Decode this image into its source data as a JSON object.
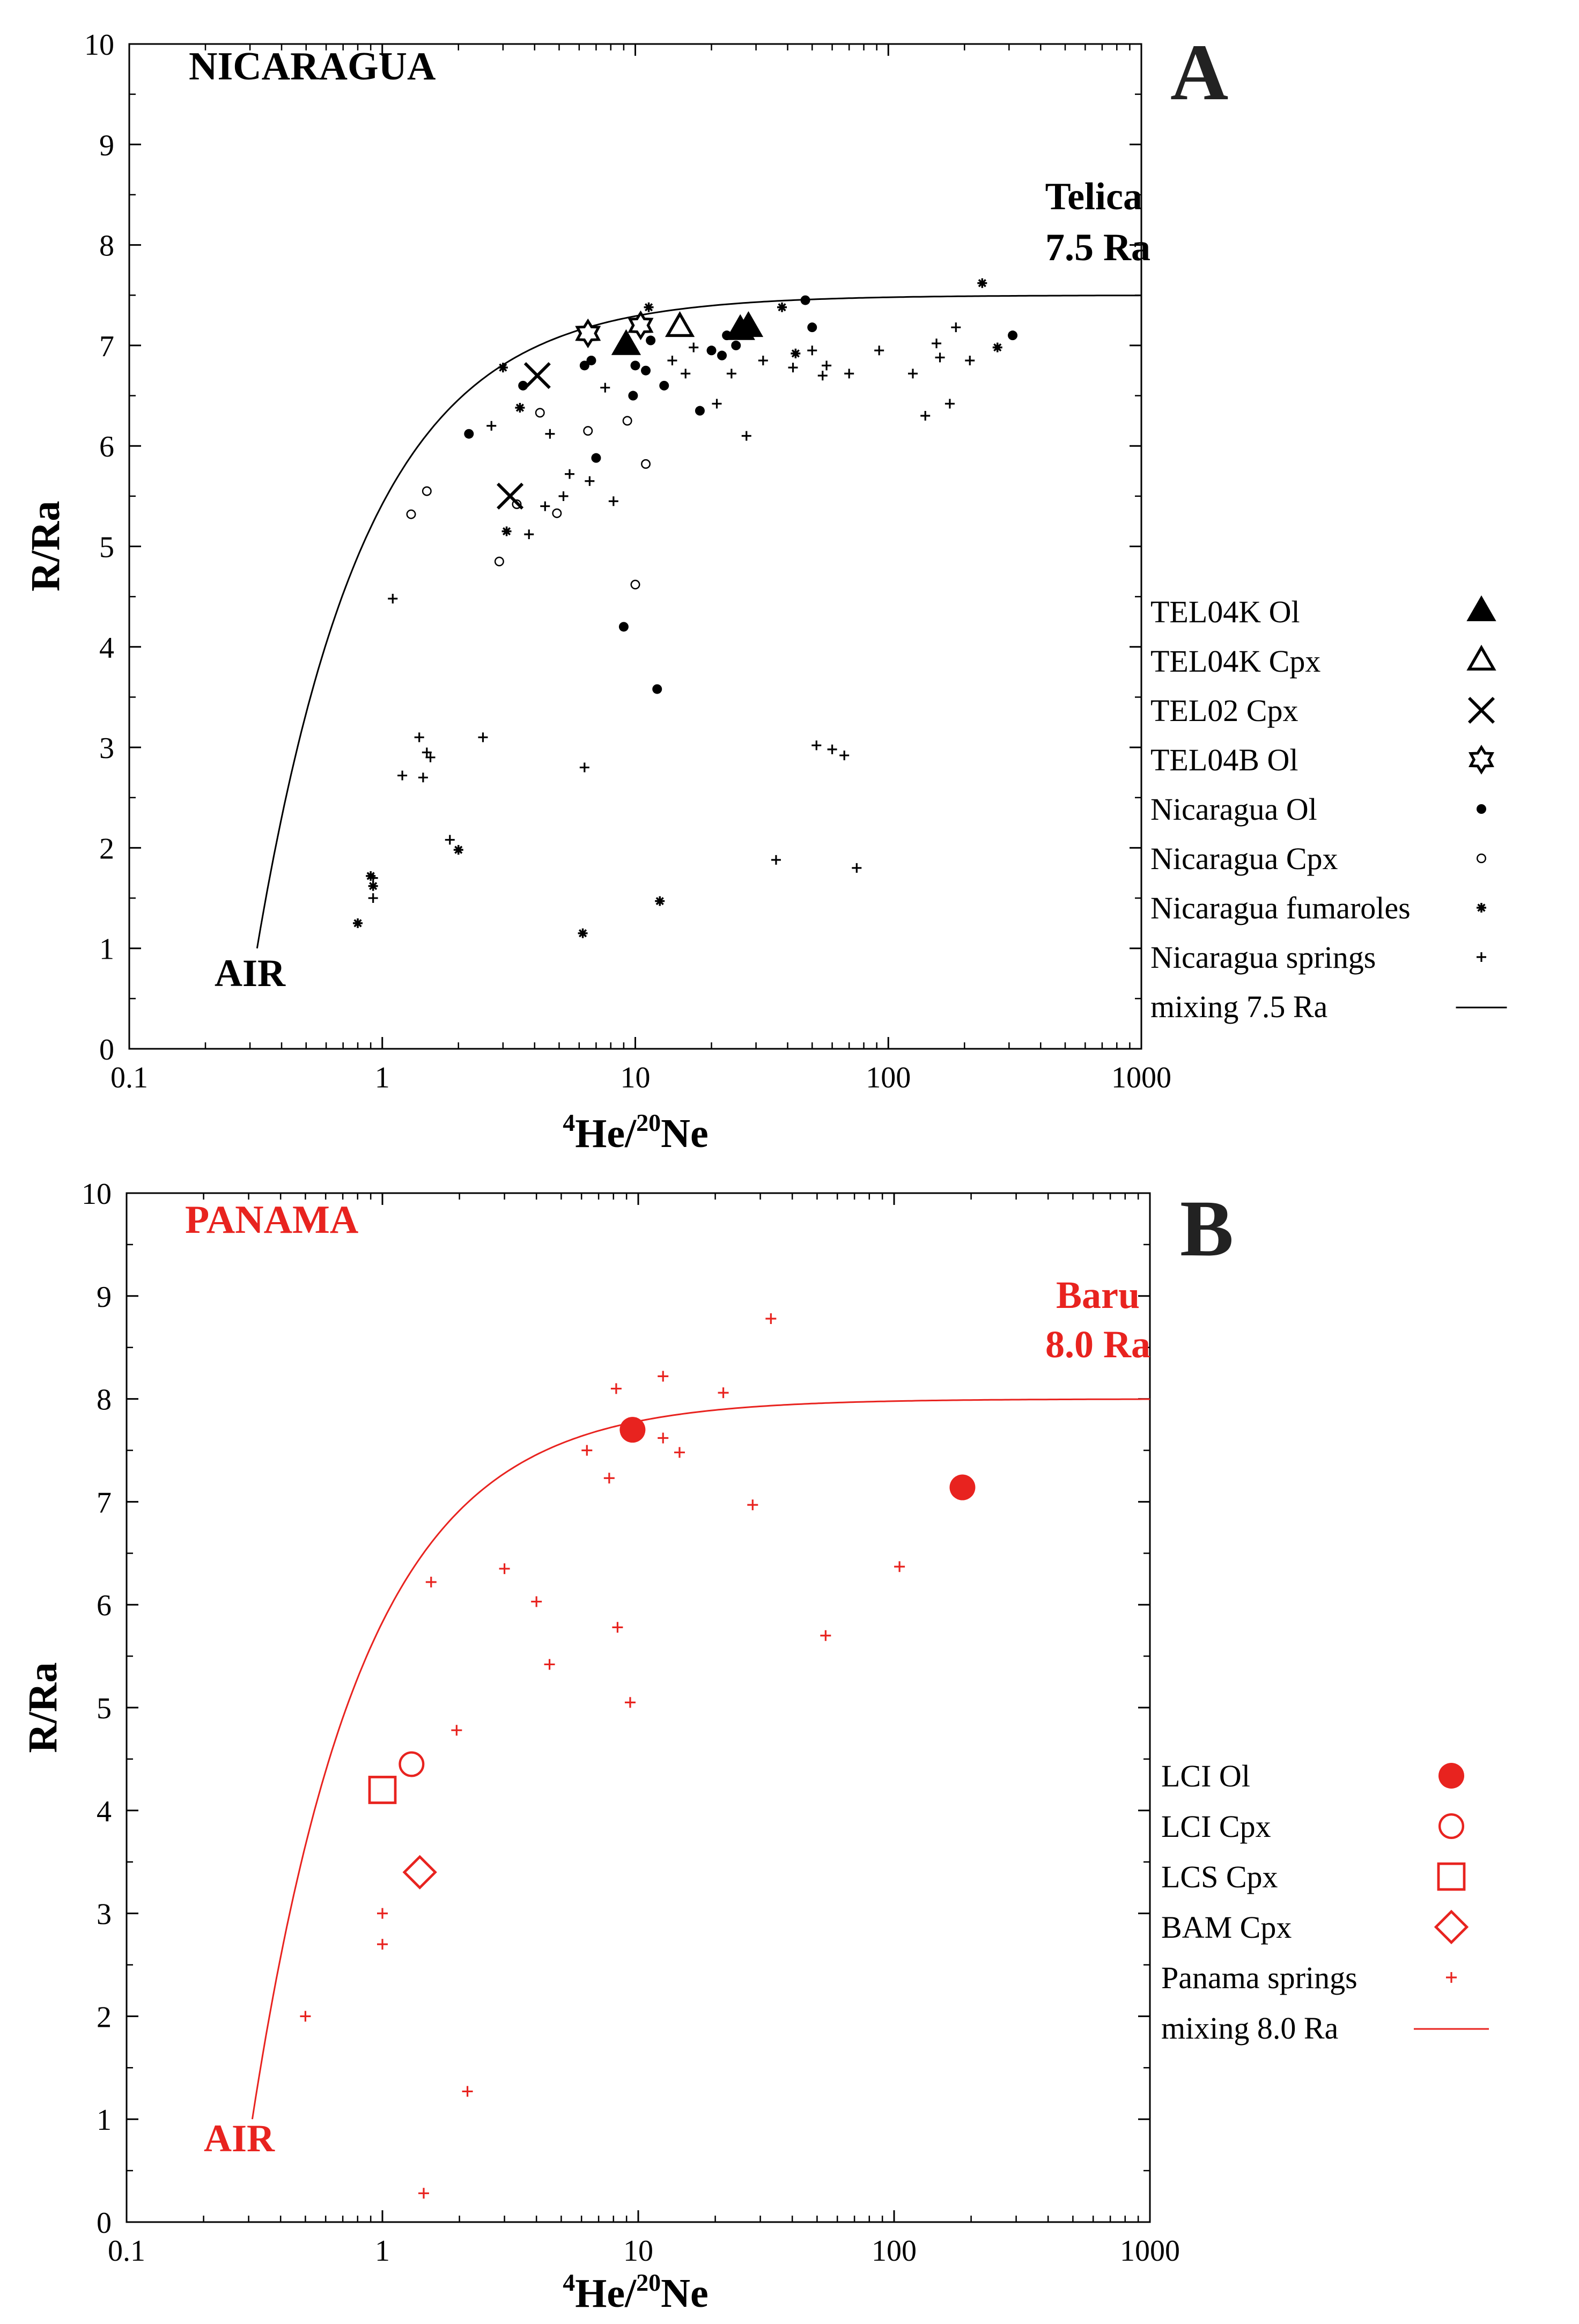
{
  "colors": {
    "nicaragua": "#000000",
    "panama": "#e8231f"
  },
  "chart_data": [
    {
      "type": "scatter",
      "panel_letter": "A",
      "region_label": "NICARAGUA",
      "endmember": {
        "name": "Telica",
        "ratio_label": "7.5 Ra",
        "ra": 7.5
      },
      "air_label": "AIR",
      "xlabel": {
        "superscript1": "4",
        "part1": "He/",
        "superscript2": "20",
        "part2": "Ne"
      },
      "ylabel": "R/Ra",
      "xscale": "log",
      "xlim": [
        0.1,
        1000
      ],
      "ylim": [
        0,
        10
      ],
      "xticks": [
        0.1,
        1,
        10,
        100,
        1000
      ],
      "xtick_labels": [
        "0.1",
        "1",
        "10",
        "100",
        "1000"
      ],
      "yticks": [
        0,
        1,
        2,
        3,
        4,
        5,
        6,
        7,
        8,
        9,
        10
      ],
      "ytick_labels": [
        "0",
        "1",
        "2",
        "3",
        "4",
        "5",
        "6",
        "7",
        "8",
        "9",
        "10"
      ],
      "color": "#000000",
      "legend_position": "right",
      "mixing_line": {
        "label": "mixing 7.5 Ra",
        "x_start": 0.32,
        "x_end": 1000,
        "r_air": 1,
        "r_end": 7.5
      },
      "series": [
        {
          "name": "TEL04K Ol",
          "marker": "triangle-filled",
          "size": "large",
          "points": [
            [
              9.2,
              7.0
            ],
            [
              26,
              7.15
            ],
            [
              28,
              7.18
            ]
          ]
        },
        {
          "name": "TEL04K Cpx",
          "marker": "triangle-open",
          "size": "large",
          "points": [
            [
              15,
              7.18
            ]
          ]
        },
        {
          "name": "TEL02 Cpx",
          "marker": "x",
          "size": "large",
          "points": [
            [
              4.1,
              6.7
            ],
            [
              3.2,
              5.5
            ]
          ]
        },
        {
          "name": "TEL04B Ol",
          "marker": "star-open",
          "size": "large",
          "points": [
            [
              6.5,
              7.12
            ],
            [
              10.5,
              7.2
            ]
          ]
        },
        {
          "name": "Nicaragua Ol",
          "marker": "dot-filled",
          "size": "small",
          "points": [
            [
              2.2,
              6.12
            ],
            [
              3.6,
              6.6
            ],
            [
              6.3,
              6.8
            ],
            [
              6.7,
              6.85
            ],
            [
              7,
              5.88
            ],
            [
              9,
              4.2
            ],
            [
              9.8,
              6.5
            ],
            [
              10,
              6.8
            ],
            [
              11,
              6.75
            ],
            [
              11.5,
              7.05
            ],
            [
              12.2,
              3.58
            ],
            [
              13,
              6.6
            ],
            [
              18,
              6.35
            ],
            [
              20,
              6.95
            ],
            [
              22,
              6.9
            ],
            [
              23,
              7.1
            ],
            [
              25,
              7.0
            ],
            [
              47,
              7.45
            ],
            [
              50,
              7.18
            ],
            [
              310,
              7.1
            ]
          ]
        },
        {
          "name": "Nicaragua Cpx",
          "marker": "dot-open",
          "size": "small",
          "points": [
            [
              1.3,
              5.32
            ],
            [
              1.5,
              5.55
            ],
            [
              2.9,
              4.85
            ],
            [
              3.4,
              5.42
            ],
            [
              4.2,
              6.33
            ],
            [
              4.9,
              5.33
            ],
            [
              6.5,
              6.15
            ],
            [
              9.3,
              6.25
            ],
            [
              10,
              4.62
            ],
            [
              11,
              5.82
            ]
          ]
        },
        {
          "name": "Nicaragua fumaroles",
          "marker": "asterisk",
          "size": "small",
          "points": [
            [
              0.8,
              1.25
            ],
            [
              0.9,
              1.72
            ],
            [
              0.92,
              1.62
            ],
            [
              2,
              1.98
            ],
            [
              3,
              6.78
            ],
            [
              3.1,
              5.15
            ],
            [
              3.5,
              6.38
            ],
            [
              6.2,
              1.15
            ],
            [
              12.5,
              1.47
            ],
            [
              11.3,
              7.38
            ],
            [
              38,
              7.38
            ],
            [
              43,
              6.92
            ],
            [
              235,
              7.62
            ],
            [
              270,
              6.98
            ]
          ]
        },
        {
          "name": "Nicaragua springs",
          "marker": "plus",
          "size": "small",
          "points": [
            [
              1.1,
              4.48
            ],
            [
              1.2,
              2.72
            ],
            [
              1.4,
              3.1
            ],
            [
              1.45,
              2.7
            ],
            [
              1.5,
              2.95
            ],
            [
              1.55,
              2.9
            ],
            [
              0.92,
              1.5
            ],
            [
              0.92,
              1.7
            ],
            [
              1.85,
              2.08
            ],
            [
              2.5,
              3.1
            ],
            [
              2.7,
              6.2
            ],
            [
              3.8,
              5.12
            ],
            [
              4.4,
              5.4
            ],
            [
              4.6,
              6.12
            ],
            [
              5.2,
              5.5
            ],
            [
              5.5,
              5.72
            ],
            [
              6.3,
              2.8
            ],
            [
              6.6,
              5.65
            ],
            [
              7.6,
              6.58
            ],
            [
              8.2,
              5.45
            ],
            [
              14,
              6.85
            ],
            [
              15.8,
              6.72
            ],
            [
              17,
              6.98
            ],
            [
              21,
              6.42
            ],
            [
              24,
              6.72
            ],
            [
              27.5,
              6.1
            ],
            [
              32,
              6.85
            ],
            [
              36,
              1.88
            ],
            [
              42,
              6.78
            ],
            [
              50,
              6.95
            ],
            [
              52,
              3.02
            ],
            [
              55,
              6.7
            ],
            [
              57,
              6.8
            ],
            [
              60,
              2.98
            ],
            [
              67,
              2.92
            ],
            [
              70,
              6.72
            ],
            [
              75,
              1.8
            ],
            [
              92,
              6.95
            ],
            [
              125,
              6.72
            ],
            [
              140,
              6.3
            ],
            [
              155,
              7.02
            ],
            [
              160,
              6.88
            ],
            [
              175,
              6.42
            ],
            [
              185,
              7.18
            ],
            [
              210,
              6.85
            ]
          ]
        }
      ]
    },
    {
      "type": "scatter",
      "panel_letter": "B",
      "region_label": "PANAMA",
      "endmember": {
        "name": "Baru",
        "ratio_label": "8.0 Ra",
        "ra": 8.0
      },
      "air_label": "AIR",
      "xlabel": {
        "superscript1": "4",
        "part1": "He/",
        "superscript2": "20",
        "part2": "Ne"
      },
      "ylabel": "R/Ra",
      "xscale": "log",
      "xlim": [
        0.1,
        1000
      ],
      "ylim": [
        0,
        10
      ],
      "xticks": [
        0.1,
        1,
        10,
        100,
        1000
      ],
      "xtick_labels": [
        "0.1",
        "1",
        "10",
        "100",
        "1000"
      ],
      "yticks": [
        0,
        1,
        2,
        3,
        4,
        5,
        6,
        7,
        8,
        9,
        10
      ],
      "ytick_labels": [
        "0",
        "1",
        "2",
        "3",
        "4",
        "5",
        "6",
        "7",
        "8",
        "9",
        "10"
      ],
      "color": "#e8231f",
      "legend_position": "right",
      "mixing_line": {
        "label": "mixing 8.0 Ra",
        "x_start": 0.31,
        "x_end": 1000,
        "r_air": 1,
        "r_end": 8.0
      },
      "series": [
        {
          "name": "LCI Ol",
          "marker": "dot-filled",
          "size": "large",
          "points": [
            [
              9.5,
              7.7
            ],
            [
              185,
              7.14
            ]
          ]
        },
        {
          "name": "LCI Cpx",
          "marker": "dot-open",
          "size": "large",
          "points": [
            [
              1.3,
              4.45
            ]
          ]
        },
        {
          "name": "LCS Cpx",
          "marker": "square-open",
          "size": "large",
          "points": [
            [
              1.0,
              4.2
            ]
          ]
        },
        {
          "name": "BAM Cpx",
          "marker": "diamond-open",
          "size": "large",
          "points": [
            [
              1.4,
              3.4
            ]
          ]
        },
        {
          "name": "Panama springs",
          "marker": "plus",
          "size": "small",
          "points": [
            [
              0.5,
              2.0
            ],
            [
              1.0,
              3.0
            ],
            [
              1.0,
              2.7
            ],
            [
              1.45,
              0.28
            ],
            [
              1.55,
              6.22
            ],
            [
              1.95,
              4.78
            ],
            [
              2.15,
              1.27
            ],
            [
              3.0,
              6.35
            ],
            [
              4.0,
              6.03
            ],
            [
              4.5,
              5.42
            ],
            [
              6.3,
              7.5
            ],
            [
              7.7,
              7.23
            ],
            [
              8.2,
              8.1
            ],
            [
              8.3,
              5.78
            ],
            [
              9.3,
              5.05
            ],
            [
              12.5,
              8.22
            ],
            [
              12.5,
              7.62
            ],
            [
              14.5,
              7.48
            ],
            [
              21.5,
              8.06
            ],
            [
              28,
              6.97
            ],
            [
              33,
              8.78
            ],
            [
              54,
              5.7
            ],
            [
              105,
              6.37
            ]
          ]
        }
      ]
    }
  ]
}
